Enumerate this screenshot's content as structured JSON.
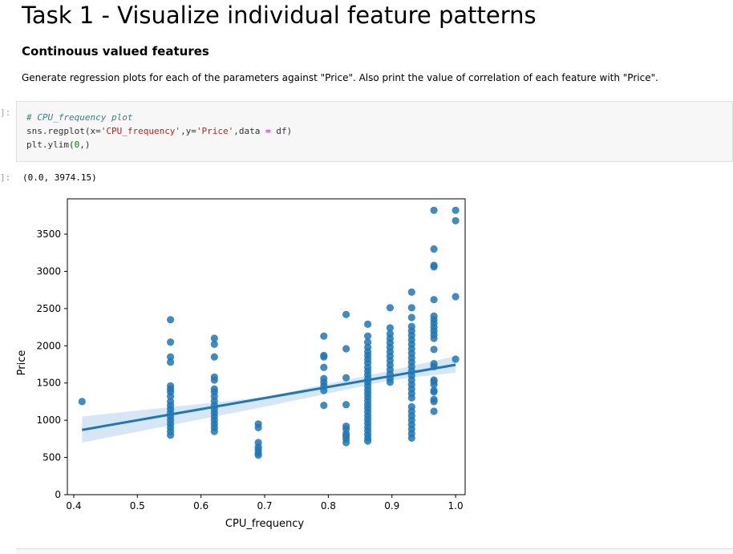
{
  "notebook": {
    "heading": "Task 1 - Visualize individual feature patterns",
    "subheading": "Continouus valued features",
    "instruction": "Generate regression plots for each of the parameters against \"Price\". Also print the value of correlation of each feature with \"Price\".",
    "in_prompt": "]:",
    "out_prompt": "]:",
    "code": {
      "comment": "# CPU_frequency plot",
      "line2_prefix": "sns.regplot(x=",
      "line2_xarg": "'CPU_frequency'",
      "line2_mid": ",y=",
      "line2_yarg": "'Price'",
      "line2_data": ",data ",
      "line2_eq": "=",
      "line2_suffix": " df)",
      "line3_prefix": "plt.ylim(",
      "line3_num": "0",
      "line3_suffix": ",)"
    },
    "output": "(0.0, 3974.15)"
  },
  "colors": {
    "point": "#1f77b4",
    "ci_band": "#c6dbef"
  },
  "chart_data": {
    "type": "scatter",
    "xlabel": "CPU_frequency",
    "ylabel": "Price",
    "xlim": [
      0.39,
      1.015
    ],
    "ylim": [
      0,
      3974.15
    ],
    "xticks": [
      0.4,
      0.5,
      0.6,
      0.7,
      0.8,
      0.9,
      1.0
    ],
    "xtick_labels": [
      "0.4",
      "0.5",
      "0.6",
      "0.7",
      "0.8",
      "0.9",
      "1.0"
    ],
    "yticks": [
      0,
      500,
      1000,
      1500,
      2000,
      2500,
      3000,
      3500
    ],
    "ytick_labels": [
      "0",
      "500",
      "1000",
      "1500",
      "2000",
      "2500",
      "3000",
      "3500"
    ],
    "regression": {
      "x": [
        0.413,
        1.0
      ],
      "y": [
        870,
        1745
      ]
    },
    "ci_band": {
      "x": [
        0.413,
        0.7,
        0.9,
        1.0
      ],
      "lower": [
        700,
        1180,
        1540,
        1640
      ],
      "upper": [
        1050,
        1310,
        1670,
        1860
      ]
    },
    "points": [
      [
        0.413,
        1250
      ],
      [
        0.552,
        2350
      ],
      [
        0.552,
        2050
      ],
      [
        0.552,
        1850
      ],
      [
        0.552,
        1780
      ],
      [
        0.552,
        1460
      ],
      [
        0.552,
        1420
      ],
      [
        0.552,
        1380
      ],
      [
        0.552,
        1320
      ],
      [
        0.552,
        1250
      ],
      [
        0.552,
        1200
      ],
      [
        0.552,
        1150
      ],
      [
        0.552,
        1100
      ],
      [
        0.552,
        1050
      ],
      [
        0.552,
        1000
      ],
      [
        0.552,
        950
      ],
      [
        0.552,
        900
      ],
      [
        0.552,
        850
      ],
      [
        0.552,
        800
      ],
      [
        0.621,
        2100
      ],
      [
        0.621,
        2020
      ],
      [
        0.621,
        1850
      ],
      [
        0.621,
        1580
      ],
      [
        0.621,
        1540
      ],
      [
        0.621,
        1420
      ],
      [
        0.621,
        1380
      ],
      [
        0.621,
        1320
      ],
      [
        0.621,
        1260
      ],
      [
        0.621,
        1200
      ],
      [
        0.621,
        1150
      ],
      [
        0.621,
        1100
      ],
      [
        0.621,
        1050
      ],
      [
        0.621,
        1000
      ],
      [
        0.621,
        950
      ],
      [
        0.621,
        900
      ],
      [
        0.621,
        850
      ],
      [
        0.69,
        950
      ],
      [
        0.69,
        900
      ],
      [
        0.69,
        700
      ],
      [
        0.69,
        640
      ],
      [
        0.69,
        600
      ],
      [
        0.69,
        560
      ],
      [
        0.69,
        530
      ],
      [
        0.793,
        2130
      ],
      [
        0.793,
        1870
      ],
      [
        0.793,
        1850
      ],
      [
        0.793,
        1710
      ],
      [
        0.793,
        1560
      ],
      [
        0.793,
        1510
      ],
      [
        0.793,
        1460
      ],
      [
        0.793,
        1400
      ],
      [
        0.793,
        1200
      ],
      [
        0.828,
        2420
      ],
      [
        0.828,
        1960
      ],
      [
        0.828,
        1570
      ],
      [
        0.828,
        1210
      ],
      [
        0.828,
        920
      ],
      [
        0.828,
        880
      ],
      [
        0.828,
        820
      ],
      [
        0.828,
        790
      ],
      [
        0.828,
        750
      ],
      [
        0.828,
        700
      ],
      [
        0.862,
        2290
      ],
      [
        0.862,
        2130
      ],
      [
        0.862,
        2050
      ],
      [
        0.862,
        1980
      ],
      [
        0.862,
        1920
      ],
      [
        0.862,
        1870
      ],
      [
        0.862,
        1820
      ],
      [
        0.862,
        1770
      ],
      [
        0.862,
        1710
      ],
      [
        0.862,
        1660
      ],
      [
        0.862,
        1610
      ],
      [
        0.862,
        1560
      ],
      [
        0.862,
        1510
      ],
      [
        0.862,
        1460
      ],
      [
        0.862,
        1410
      ],
      [
        0.862,
        1360
      ],
      [
        0.862,
        1310
      ],
      [
        0.862,
        1260
      ],
      [
        0.862,
        1210
      ],
      [
        0.862,
        1160
      ],
      [
        0.862,
        1110
      ],
      [
        0.862,
        1060
      ],
      [
        0.862,
        1010
      ],
      [
        0.862,
        960
      ],
      [
        0.862,
        910
      ],
      [
        0.862,
        860
      ],
      [
        0.862,
        810
      ],
      [
        0.862,
        760
      ],
      [
        0.862,
        720
      ],
      [
        0.897,
        2510
      ],
      [
        0.897,
        2240
      ],
      [
        0.897,
        2160
      ],
      [
        0.897,
        2100
      ],
      [
        0.897,
        2040
      ],
      [
        0.897,
        1980
      ],
      [
        0.897,
        1920
      ],
      [
        0.897,
        1860
      ],
      [
        0.897,
        1800
      ],
      [
        0.897,
        1740
      ],
      [
        0.897,
        1680
      ],
      [
        0.897,
        1620
      ],
      [
        0.897,
        1560
      ],
      [
        0.897,
        1510
      ],
      [
        0.931,
        2720
      ],
      [
        0.931,
        2510
      ],
      [
        0.931,
        2380
      ],
      [
        0.931,
        2260
      ],
      [
        0.931,
        2200
      ],
      [
        0.931,
        2140
      ],
      [
        0.931,
        2080
      ],
      [
        0.931,
        2020
      ],
      [
        0.931,
        1960
      ],
      [
        0.931,
        1900
      ],
      [
        0.931,
        1840
      ],
      [
        0.931,
        1780
      ],
      [
        0.931,
        1720
      ],
      [
        0.931,
        1660
      ],
      [
        0.931,
        1600
      ],
      [
        0.931,
        1540
      ],
      [
        0.931,
        1480
      ],
      [
        0.931,
        1420
      ],
      [
        0.931,
        1360
      ],
      [
        0.931,
        1300
      ],
      [
        0.931,
        1180
      ],
      [
        0.931,
        1120
      ],
      [
        0.931,
        1060
      ],
      [
        0.931,
        1000
      ],
      [
        0.931,
        940
      ],
      [
        0.931,
        880
      ],
      [
        0.931,
        820
      ],
      [
        0.931,
        760
      ],
      [
        0.966,
        3820
      ],
      [
        0.966,
        3300
      ],
      [
        0.966,
        3080
      ],
      [
        0.966,
        3060
      ],
      [
        0.966,
        2620
      ],
      [
        0.966,
        2400
      ],
      [
        0.966,
        2350
      ],
      [
        0.966,
        2300
      ],
      [
        0.966,
        2250
      ],
      [
        0.966,
        2200
      ],
      [
        0.966,
        2150
      ],
      [
        0.966,
        2100
      ],
      [
        0.966,
        1950
      ],
      [
        0.966,
        1760
      ],
      [
        0.966,
        1720
      ],
      [
        0.966,
        1540
      ],
      [
        0.966,
        1520
      ],
      [
        0.966,
        1480
      ],
      [
        0.966,
        1400
      ],
      [
        0.966,
        1380
      ],
      [
        0.966,
        1280
      ],
      [
        0.966,
        1250
      ],
      [
        0.966,
        1120
      ],
      [
        1.0,
        3820
      ],
      [
        1.0,
        3680
      ],
      [
        1.0,
        2660
      ],
      [
        1.0,
        1820
      ]
    ]
  }
}
